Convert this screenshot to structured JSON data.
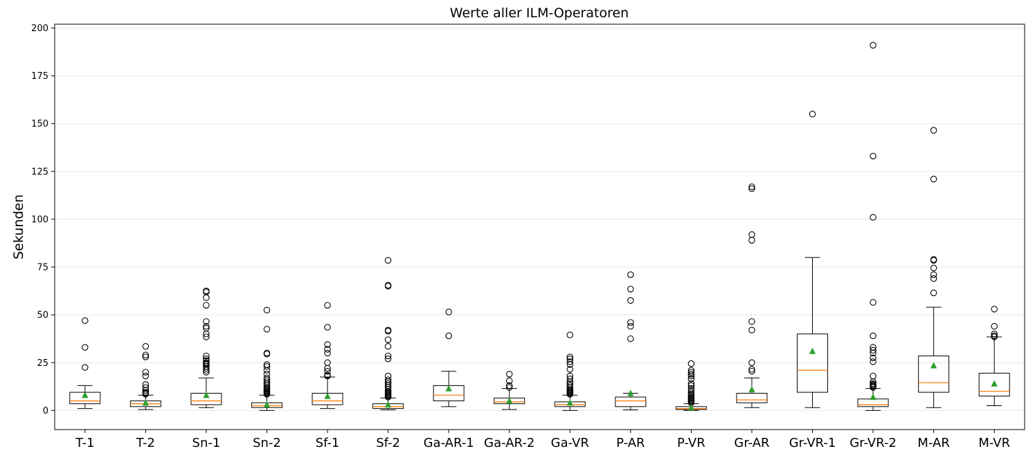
{
  "chart_data": {
    "type": "box",
    "title": "Werte aller ILM-Operatoren",
    "xlabel": "",
    "ylabel": "Sekunden",
    "ylim": [
      -10,
      202
    ],
    "yticks": [
      0,
      25,
      50,
      75,
      100,
      125,
      150,
      175,
      200
    ],
    "grid": "y",
    "colors": {
      "box": "#000000",
      "median": "#ff7f0e",
      "mean": "#2ca02c",
      "grid": "#e6e6e6"
    },
    "categories": [
      "T-1",
      "T-2",
      "Sn-1",
      "Sn-2",
      "Sf-1",
      "Sf-2",
      "Ga-AR-1",
      "Ga-AR-2",
      "Ga-VR",
      "P-AR",
      "P-VR",
      "Gr-AR",
      "Gr-VR-1",
      "Gr-VR-2",
      "M-AR",
      "M-VR"
    ],
    "boxes": [
      {
        "label": "T-1",
        "whisker_low": 1,
        "q1": 3.5,
        "median": 5,
        "q3": 9.5,
        "whisker_high": 13,
        "mean": 8,
        "outliers": [
          47,
          33,
          22.5
        ]
      },
      {
        "label": "T-2",
        "whisker_low": 0.5,
        "q1": 2,
        "median": 3.5,
        "q3": 5,
        "whisker_high": 8,
        "mean": 4,
        "outliers": [
          33.5,
          29,
          28,
          20,
          18,
          13.5,
          12,
          10.5,
          9.5,
          9,
          8.5
        ]
      },
      {
        "label": "Sn-1",
        "whisker_low": 1.5,
        "q1": 3,
        "median": 5,
        "q3": 9,
        "whisker_high": 17,
        "mean": 8,
        "outliers": [
          62.5,
          62,
          59,
          55,
          46.5,
          44,
          43,
          40,
          38.5,
          28.5,
          27,
          26,
          25,
          24.5,
          24,
          23,
          22,
          21,
          20
        ]
      },
      {
        "label": "Sn-2",
        "whisker_low": 0,
        "q1": 1.5,
        "median": 2.5,
        "q3": 4,
        "whisker_high": 8,
        "mean": 3,
        "outliers": [
          52.5,
          42.5,
          30,
          29.5,
          24,
          23,
          21,
          19,
          17,
          16,
          15,
          14,
          13,
          12,
          11.5,
          11,
          10.5,
          10,
          9.5,
          9,
          8.5
        ]
      },
      {
        "label": "Sf-1",
        "whisker_low": 1,
        "q1": 3,
        "median": 5,
        "q3": 9,
        "whisker_high": 17.5,
        "mean": 7.5,
        "outliers": [
          55,
          43.5,
          34.5,
          32,
          30,
          25,
          22,
          20.5,
          18.5,
          18
        ]
      },
      {
        "label": "Sf-2",
        "whisker_low": 0.3,
        "q1": 1,
        "median": 2,
        "q3": 3.5,
        "whisker_high": 6.5,
        "mean": 3,
        "outliers": [
          78.5,
          65.5,
          65,
          42,
          41.5,
          37,
          33.5,
          28.5,
          27,
          18,
          16,
          15,
          14,
          13,
          12,
          11,
          10,
          9.5,
          9,
          8.5,
          8,
          7.5,
          7
        ]
      },
      {
        "label": "Ga-AR-1",
        "whisker_low": 2,
        "q1": 5,
        "median": 8,
        "q3": 13,
        "whisker_high": 20.5,
        "mean": 11.5,
        "outliers": [
          51.5,
          39
        ]
      },
      {
        "label": "Ga-AR-2",
        "whisker_low": 0.5,
        "q1": 3.5,
        "median": 4.5,
        "q3": 6.5,
        "whisker_high": 11.5,
        "mean": 5,
        "outliers": [
          19,
          15.5,
          13,
          12
        ]
      },
      {
        "label": "Ga-VR",
        "whisker_low": 0,
        "q1": 2,
        "median": 3,
        "q3": 4.5,
        "whisker_high": 8,
        "mean": 4,
        "outliers": [
          39.5,
          28,
          27,
          25.5,
          24,
          21.5,
          18,
          16.5,
          15,
          14,
          13,
          12,
          11,
          10.5,
          10,
          9.5,
          9,
          8.5
        ]
      },
      {
        "label": "P-AR",
        "whisker_low": 0.3,
        "q1": 2,
        "median": 5,
        "q3": 7,
        "whisker_high": 9,
        "mean": 9,
        "outliers": [
          71,
          63.5,
          57.5,
          46,
          44,
          37.5
        ]
      },
      {
        "label": "P-VR",
        "whisker_low": 0,
        "q1": 0.5,
        "median": 1,
        "q3": 2,
        "whisker_high": 3.5,
        "mean": 1.5,
        "outliers": [
          24.5,
          21,
          20,
          19,
          18,
          16.5,
          14,
          13,
          11.5,
          10.5,
          9.5,
          8.5,
          8,
          7,
          6.5,
          6,
          5.5,
          5,
          4.5,
          4
        ]
      },
      {
        "label": "Gr-AR",
        "whisker_low": 1.5,
        "q1": 4,
        "median": 5.5,
        "q3": 9,
        "whisker_high": 17,
        "mean": 11,
        "outliers": [
          117,
          116,
          92,
          89,
          46.5,
          42,
          25,
          21.5,
          20.5
        ]
      },
      {
        "label": "Gr-VR-1",
        "whisker_low": 1.5,
        "q1": 9.5,
        "median": 21,
        "q3": 40,
        "whisker_high": 80,
        "mean": 31,
        "outliers": [
          155
        ]
      },
      {
        "label": "Gr-VR-2",
        "whisker_low": 0,
        "q1": 2,
        "median": 3,
        "q3": 6,
        "whisker_high": 11.5,
        "mean": 7,
        "outliers": [
          191,
          133,
          101,
          56.5,
          39,
          33,
          31.5,
          30,
          27.5,
          25.5,
          18,
          15,
          14,
          13.5,
          13,
          12.5,
          12
        ]
      },
      {
        "label": "M-AR",
        "whisker_low": 1.5,
        "q1": 9.5,
        "median": 14.5,
        "q3": 28.5,
        "whisker_high": 54,
        "mean": 23.5,
        "outliers": [
          146.5,
          121,
          79,
          78.5,
          74.5,
          71,
          69,
          61.5
        ]
      },
      {
        "label": "M-VR",
        "whisker_low": 2.5,
        "q1": 7.5,
        "median": 10,
        "q3": 19.5,
        "whisker_high": 38.5,
        "mean": 14,
        "outliers": [
          53,
          44,
          40,
          39,
          38.5
        ]
      }
    ]
  }
}
